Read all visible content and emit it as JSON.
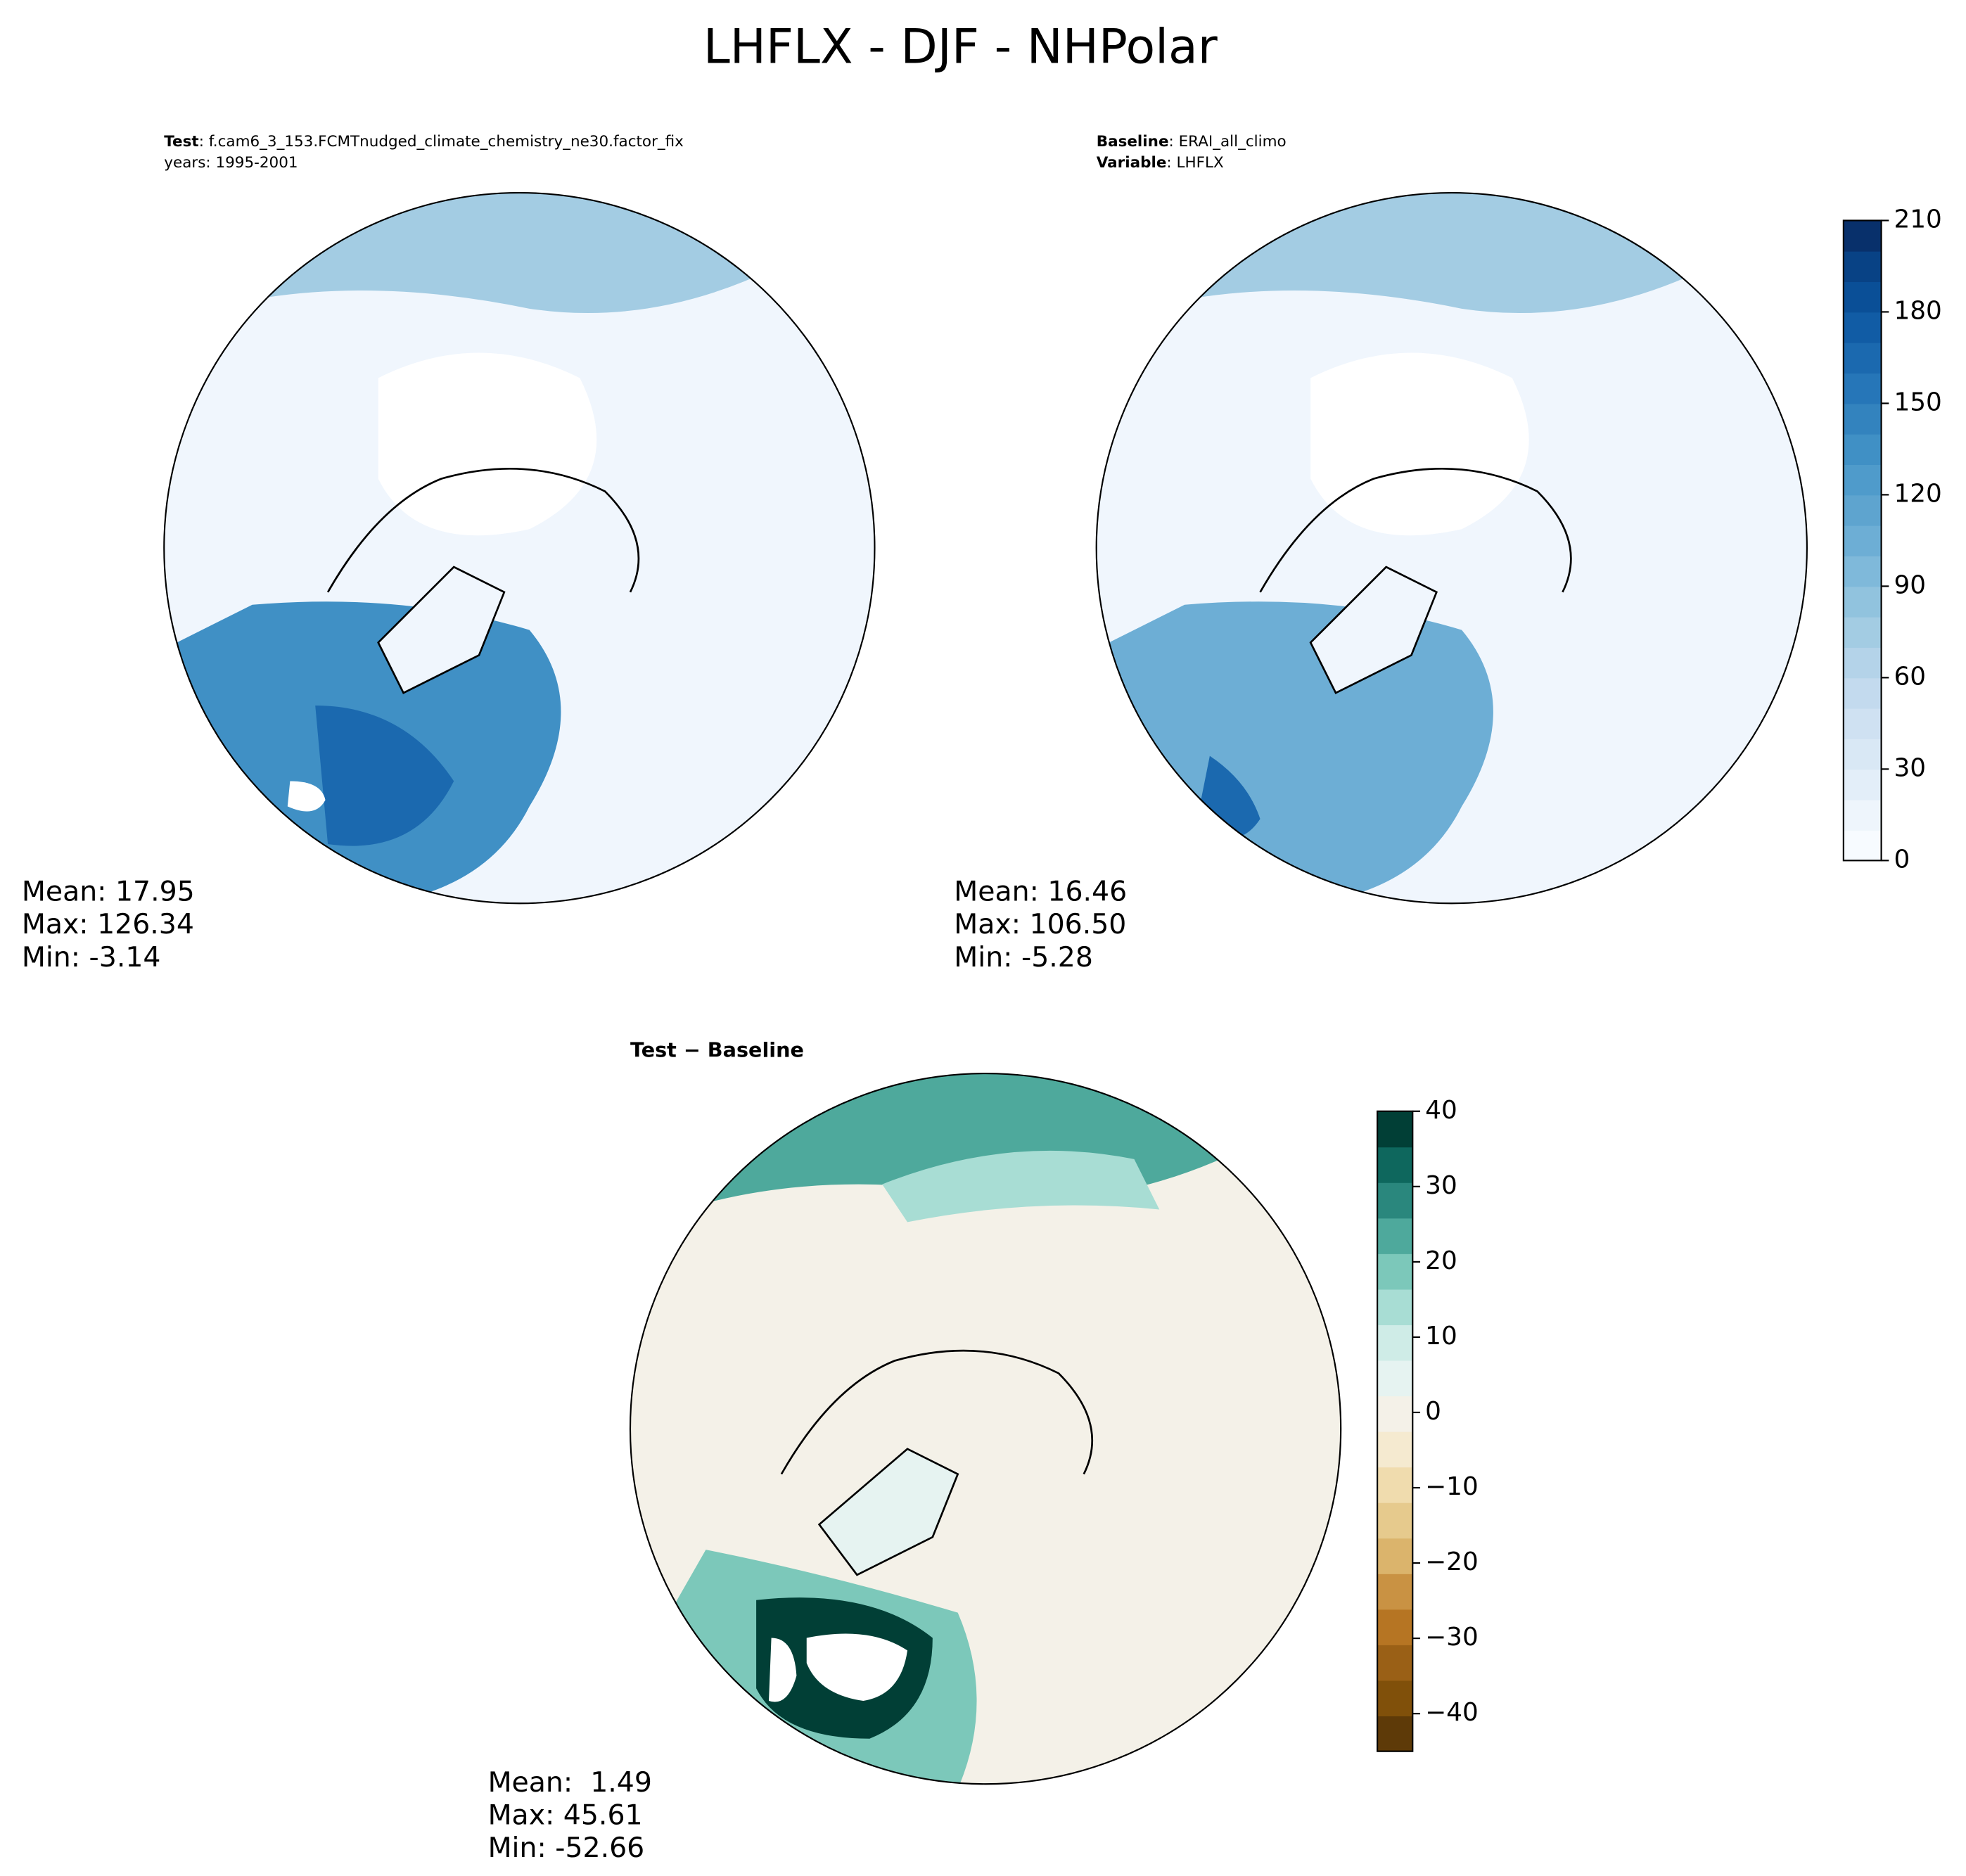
{
  "title": "LHFLX - DJF - NHPolar",
  "panels": [
    {
      "label": "Test",
      "text": ": f.cam6_3_153.FCMTnudged_climate_chemistry_ne30.factor_fix",
      "line2": "years: 1995-2001",
      "stats": [
        "Mean: 17.95",
        "Max: 126.34",
        "Min: -3.14"
      ]
    },
    {
      "label": "Baseline",
      "text": ": ERAI_all_climo",
      "label2": "Variable",
      "text2": ": LHFLX",
      "stats": [
        "Mean: 16.46",
        "Max: 106.50",
        "Min: -5.28"
      ]
    },
    {
      "label": "Test − Baseline",
      "stats": [
        "Mean:  1.49",
        "Max: 45.61",
        "Min: -52.66"
      ]
    }
  ],
  "colorbars": [
    {
      "lim": [
        0,
        210
      ],
      "ticks": [
        0,
        30,
        60,
        90,
        120,
        150,
        180,
        210
      ],
      "colors": [
        "#f7fbff",
        "#eef5fc",
        "#e3eef9",
        "#d9e8f5",
        "#cfe1f2",
        "#c3daee",
        "#b4d3e9",
        "#a3cce3",
        "#91c3de",
        "#7fb9da",
        "#6daed5",
        "#5ea4cf",
        "#4f9bcb",
        "#4090c5",
        "#3383be",
        "#2676b8",
        "#1b69af",
        "#115ca5",
        "#0a4f97",
        "#084285",
        "#08306b"
      ]
    },
    {
      "lim": [
        -45,
        40
      ],
      "ticks": [
        {
          "value": -40,
          "label": "−40"
        },
        {
          "value": -30,
          "label": "−30"
        },
        {
          "value": -20,
          "label": "−20"
        },
        {
          "value": -10,
          "label": "−10"
        },
        0,
        10,
        20,
        30,
        40
      ],
      "colors": [
        "#5e3a08",
        "#80500a",
        "#9a6016",
        "#b67523",
        "#c99243",
        "#dbb46c",
        "#e6ca8d",
        "#f0dcae",
        "#f5ead0",
        "#f4f1e8",
        "#e6f3f1",
        "#cfece7",
        "#a8ddd4",
        "#7cc8ba",
        "#4ea99c",
        "#2a877d",
        "#0e675d",
        "#013f36"
      ]
    }
  ]
}
